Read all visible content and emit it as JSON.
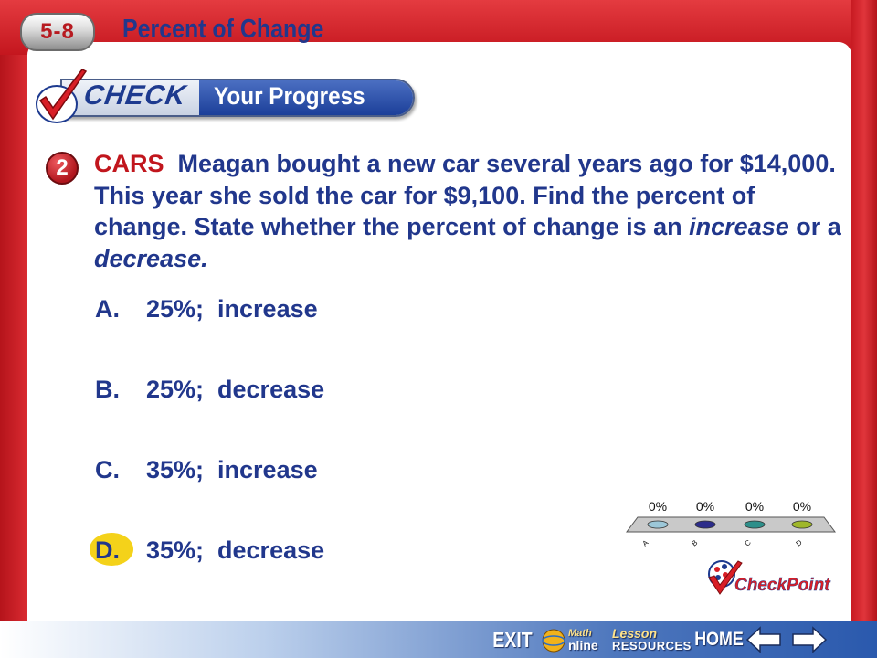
{
  "header": {
    "lesson_number": "5-8",
    "lesson_title": "Percent of Change"
  },
  "banner": {
    "check_word": "CHECK",
    "progress_word": "Your Progress"
  },
  "question": {
    "number": "2",
    "keyword": "CARS",
    "text_part1": "Meagan bought a new car several years ago for $14,000. This year she sold the car for $9,100. Find the percent of change. State whether the percent of change is an ",
    "italic1": "increase",
    "text_part2": " or a ",
    "italic2": "decrease."
  },
  "answers": [
    {
      "letter": "A.",
      "text": "25%;  increase"
    },
    {
      "letter": "B.",
      "text": "25%;  decrease"
    },
    {
      "letter": "C.",
      "text": "35%;  increase"
    },
    {
      "letter": "D.",
      "text": "35%;  decrease",
      "correct": true
    }
  ],
  "response_chart": {
    "percents": [
      "0%",
      "0%",
      "0%",
      "0%"
    ],
    "labels": [
      "A",
      "B",
      "C",
      "D"
    ],
    "colors": [
      "#9cc7d8",
      "#2c2c8a",
      "#2e8f8a",
      "#9fb72a"
    ]
  },
  "checkpoint_label": "CheckPoint",
  "nav": {
    "exit": "EXIT",
    "math_top": "Math",
    "math_bottom": "nline",
    "lesson_top": "Lesson",
    "lesson_bottom": "RESOURCES",
    "home": "HOME"
  }
}
